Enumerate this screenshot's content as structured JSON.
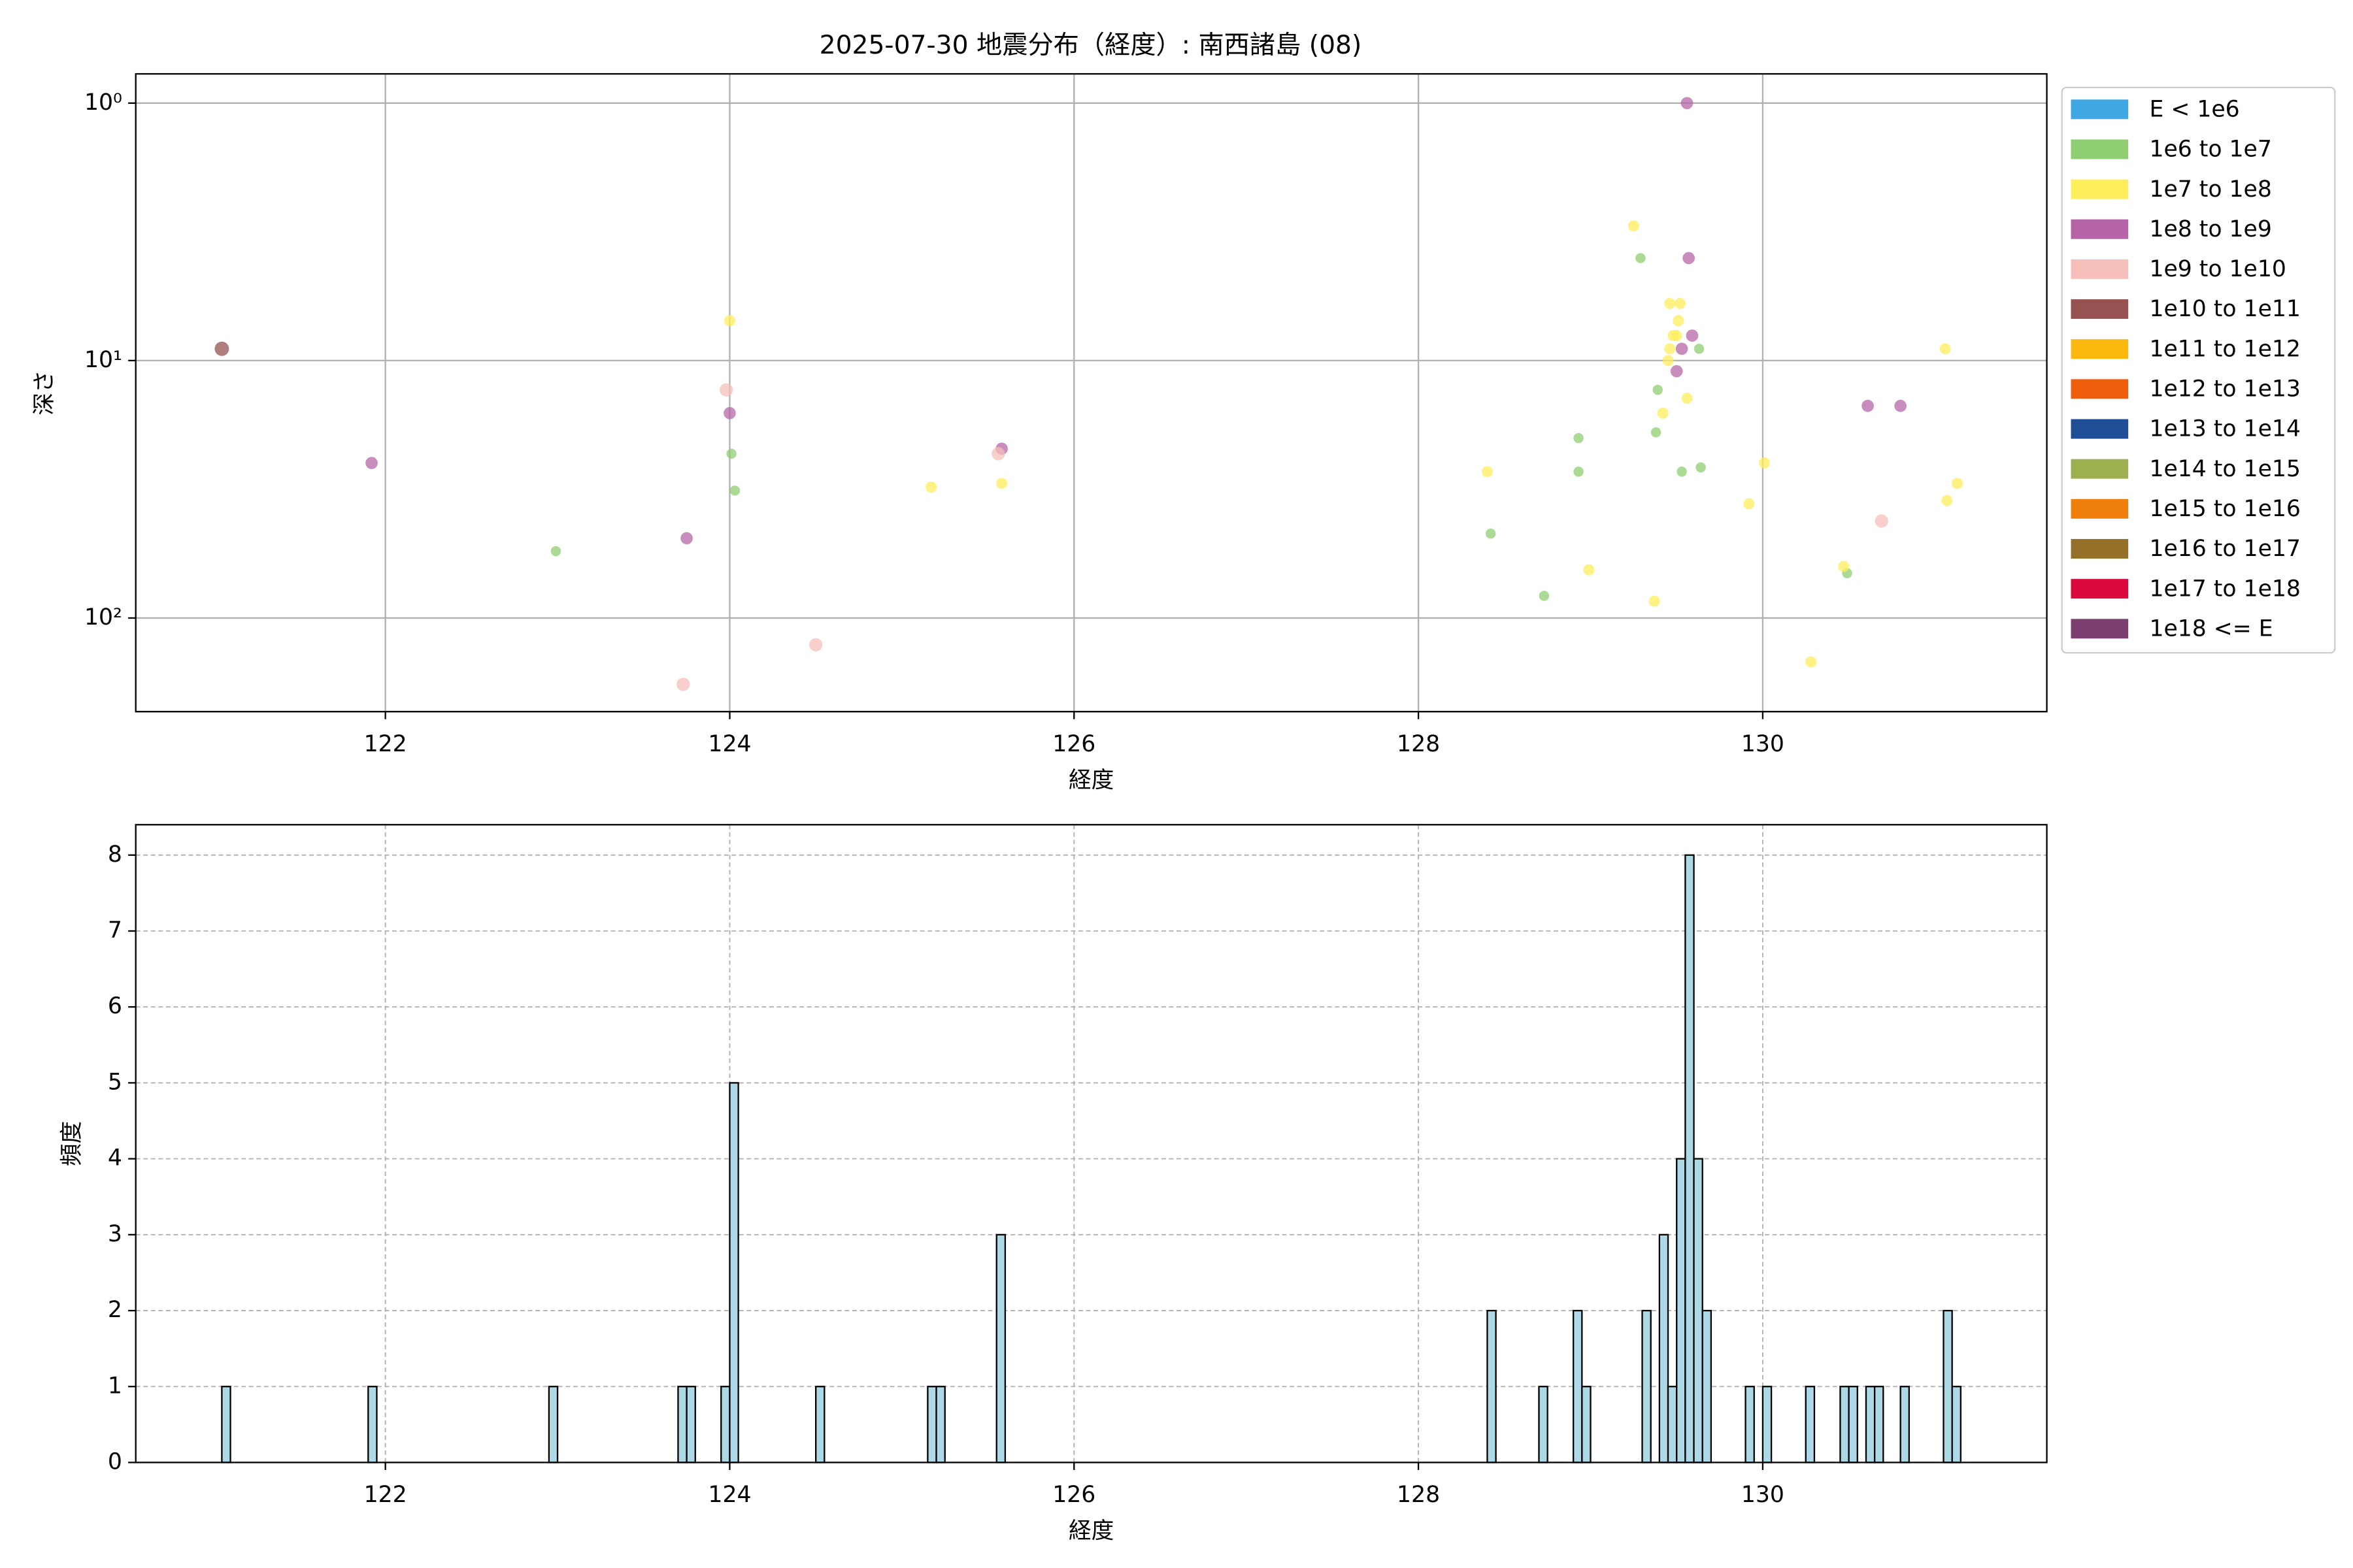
{
  "chart_data": [
    {
      "type": "scatter",
      "title": "2025-07-30 地震分布（経度）: 南西諸島 (08)",
      "xlabel": "経度",
      "ylabel": "深さ",
      "xlim": [
        120.55,
        131.65
      ],
      "xticks": [
        122,
        124,
        126,
        128,
        130
      ],
      "ylim": [
        231,
        0.77
      ],
      "yscale": "log",
      "yticks": [
        {
          "value": 1,
          "label": "10⁰"
        },
        {
          "value": 10,
          "label": "10¹"
        },
        {
          "value": 100,
          "label": "10²"
        }
      ],
      "grid": true,
      "legend": "outside-right",
      "series": [
        {
          "name": "E < 1e6",
          "color": "#3ea6e0",
          "x": [],
          "values": []
        },
        {
          "name": "1e6 to 1e7",
          "color": "#8fce72",
          "x": [
            122.99,
            124.01,
            124.03,
            129.29,
            129.63,
            129.39,
            129.38,
            128.93,
            128.93,
            129.53,
            129.64,
            128.42,
            128.73,
            130.49
          ],
          "values": [
            55,
            23,
            32,
            4,
            9,
            13,
            19,
            20,
            27,
            27,
            26,
            47,
            82,
            67
          ]
        },
        {
          "name": "1e7 to 1e8",
          "color": "#ffee5c",
          "x": [
            124.0,
            125.17,
            125.58,
            128.4,
            129.25,
            129.46,
            129.52,
            129.51,
            129.48,
            129.5,
            129.46,
            129.45,
            129.56,
            129.42,
            128.99,
            129.37,
            130.01,
            129.92,
            130.47,
            130.28,
            131.06,
            131.07,
            131.13
          ],
          "values": [
            7,
            31,
            30,
            27,
            3,
            6,
            6,
            7,
            8,
            8,
            9,
            10,
            14,
            16,
            65,
            86,
            25,
            36,
            63,
            148,
            9,
            35,
            30
          ]
        },
        {
          "name": "1e8 to 1e9",
          "color": "#b565a7",
          "x": [
            121.92,
            123.75,
            124.0,
            125.58,
            129.56,
            129.57,
            129.59,
            129.53,
            129.5,
            130.61,
            130.8
          ],
          "values": [
            25,
            49,
            16,
            22,
            1,
            4,
            8,
            9,
            11,
            15,
            15
          ]
        },
        {
          "name": "1e9 to 1e10",
          "color": "#f7bfbb",
          "x": [
            123.98,
            123.73,
            124.5,
            125.56,
            130.69
          ],
          "values": [
            13,
            181,
            127,
            23,
            42
          ]
        },
        {
          "name": "1e10 to 1e11",
          "color": "#955251",
          "x": [
            121.05
          ],
          "values": [
            9
          ]
        },
        {
          "name": "1e11 to 1e12",
          "color": "#fbb80f",
          "x": [],
          "values": []
        },
        {
          "name": "1e12 to 1e13",
          "color": "#ee5e0a",
          "x": [],
          "values": []
        },
        {
          "name": "1e13 to 1e14",
          "color": "#1f4e96",
          "x": [],
          "values": []
        },
        {
          "name": "1e14 to 1e15",
          "color": "#9cb04f",
          "x": [],
          "values": []
        },
        {
          "name": "1e15 to 1e16",
          "color": "#f07f0b",
          "x": [],
          "values": []
        },
        {
          "name": "1e16 to 1e17",
          "color": "#947028",
          "x": [],
          "values": []
        },
        {
          "name": "1e17 to 1e18",
          "color": "#dc093e",
          "x": [],
          "values": []
        },
        {
          "name": "1e18 <= E",
          "color": "#7a3f6f",
          "x": [],
          "values": []
        }
      ]
    },
    {
      "type": "histogram",
      "xlabel": "経度",
      "ylabel": "頻度",
      "color": "#add8e6",
      "edgecolor": "#000000",
      "xlim": [
        120.55,
        131.65
      ],
      "xticks": [
        122,
        124,
        126,
        128,
        130
      ],
      "ylim": [
        0,
        8.4
      ],
      "yticks": [
        0,
        1,
        2,
        3,
        4,
        5,
        6,
        7,
        8
      ],
      "grid": "dashed",
      "bins": [
        121.05,
        121.1,
        121.15,
        121.2,
        121.25,
        121.3,
        121.35,
        121.4,
        121.45,
        121.5,
        121.55,
        121.6,
        121.65,
        121.7,
        121.75,
        121.8,
        121.85,
        121.9,
        121.95,
        122,
        122.05,
        122.1,
        122.15,
        122.2,
        122.25,
        122.3,
        122.35,
        122.4,
        122.45,
        122.5,
        122.55,
        122.6,
        122.65,
        122.7,
        122.75,
        122.8,
        122.85,
        122.9,
        122.95,
        123,
        123.05,
        123.1,
        123.15,
        123.2,
        123.25,
        123.3,
        123.35,
        123.4,
        123.45,
        123.5,
        123.55,
        123.6,
        123.65,
        123.7,
        123.75,
        123.8,
        123.85,
        123.9,
        123.95,
        124,
        124.05,
        124.1,
        124.15,
        124.2,
        124.25,
        124.3,
        124.35,
        124.4,
        124.45,
        124.5,
        124.55,
        124.6,
        124.65,
        124.7,
        124.75,
        124.8,
        124.85,
        124.9,
        124.95,
        125,
        125.05,
        125.1,
        125.15,
        125.2,
        125.25,
        125.3,
        125.35,
        125.4,
        125.45,
        125.5,
        125.55,
        125.6,
        125.65,
        125.7,
        125.75,
        125.8,
        125.85,
        125.9,
        125.95,
        126,
        126.05,
        126.1,
        126.15,
        126.2,
        126.25,
        126.3,
        126.35,
        126.4,
        126.45,
        126.5,
        126.55,
        126.6,
        126.65,
        126.7,
        126.75,
        126.8,
        126.85,
        126.9,
        126.95,
        127,
        127.05,
        127.1,
        127.15,
        127.2,
        127.25,
        127.3,
        127.35,
        127.4,
        127.45,
        127.5,
        127.55,
        127.6,
        127.65,
        127.7,
        127.75,
        127.8,
        127.85,
        127.9,
        127.95,
        128,
        128.05,
        128.1,
        128.15,
        128.2,
        128.25,
        128.3,
        128.35,
        128.4,
        128.45,
        128.5,
        128.55,
        128.6,
        128.65,
        128.7,
        128.75,
        128.8,
        128.85,
        128.9,
        128.95,
        129,
        129.05,
        129.1,
        129.15,
        129.2,
        129.25,
        129.3,
        129.35,
        129.4,
        129.45,
        129.5,
        129.55,
        129.6,
        129.65,
        129.7,
        129.75,
        129.8,
        129.85,
        129.9,
        129.95,
        130,
        130.05,
        130.1,
        130.15,
        130.2,
        130.25,
        130.3,
        130.35,
        130.4,
        130.45,
        130.5,
        130.55,
        130.6,
        130.65,
        130.7,
        130.75,
        130.8,
        130.85,
        130.9,
        130.95,
        131,
        131.05,
        131.1,
        131.15
      ],
      "values": [
        1,
        0,
        0,
        0,
        0,
        0,
        0,
        0,
        0,
        0,
        0,
        0,
        0,
        0,
        0,
        0,
        0,
        1,
        0,
        0,
        0,
        0,
        0,
        0,
        0,
        0,
        0,
        0,
        0,
        0,
        0,
        0,
        0,
        0,
        0,
        0,
        0,
        0,
        1,
        0,
        0,
        0,
        0,
        0,
        0,
        0,
        0,
        0,
        0,
        0,
        0,
        0,
        0,
        1,
        1,
        0,
        0,
        0,
        1,
        5,
        0,
        0,
        0,
        0,
        0,
        0,
        0,
        0,
        0,
        1,
        0,
        0,
        0,
        0,
        0,
        0,
        0,
        0,
        0,
        0,
        0,
        0,
        1,
        1,
        0,
        0,
        0,
        0,
        0,
        0,
        3,
        0,
        0,
        0,
        0,
        0,
        0,
        0,
        0,
        0,
        0,
        0,
        0,
        0,
        0,
        0,
        0,
        0,
        0,
        0,
        0,
        0,
        0,
        0,
        0,
        0,
        0,
        0,
        0,
        0,
        0,
        0,
        0,
        0,
        0,
        0,
        0,
        0,
        0,
        0,
        0,
        0,
        0,
        0,
        0,
        0,
        0,
        0,
        0,
        0,
        0,
        0,
        0,
        0,
        0,
        0,
        0,
        2,
        0,
        0,
        0,
        0,
        0,
        1,
        0,
        0,
        0,
        2,
        1,
        0,
        0,
        0,
        0,
        0,
        0,
        2,
        0,
        3,
        1,
        4,
        8,
        4,
        2,
        0,
        0,
        0,
        0,
        1,
        0,
        1,
        0,
        0,
        0,
        0,
        1,
        0,
        0,
        0,
        1,
        1,
        0,
        1,
        1,
        0,
        0,
        1,
        0,
        0,
        0,
        0,
        2,
        1
      ]
    }
  ]
}
